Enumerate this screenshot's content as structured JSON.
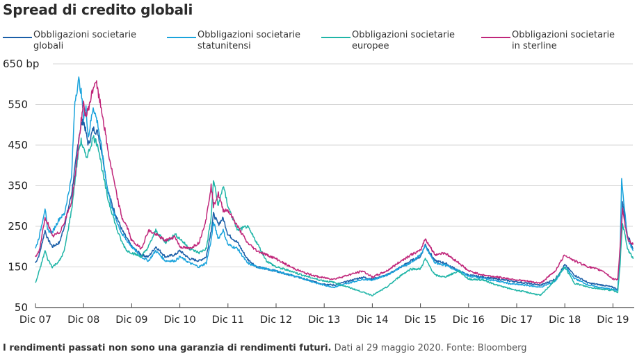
{
  "chart_data": {
    "type": "line",
    "title": "Spread di credito globali",
    "xlabel": "",
    "ylabel": "bp",
    "ylim": [
      50,
      650
    ],
    "yticks": [
      50,
      150,
      250,
      350,
      450,
      550,
      650
    ],
    "ytick_labels": [
      "50",
      "150",
      "250",
      "350",
      "450",
      "550",
      "650 bp"
    ],
    "x_units": "years since Dec 2007",
    "xlim": [
      0,
      12.42
    ],
    "xticks": [
      0,
      1,
      2,
      3,
      4,
      5,
      6,
      7,
      8,
      9,
      10,
      11,
      12
    ],
    "xtick_labels": [
      "Dic 07",
      "Dic 08",
      "Dic 09",
      "Dic 10",
      "Dic 11",
      "Dic 12",
      "Dic 13",
      "Dic 14",
      "Dic 15",
      "Dic 16",
      "Dic 17",
      "Dic 18",
      "Dic 19"
    ],
    "grid": "horizontal",
    "legend_position": "top",
    "series": [
      {
        "name": "Obbligazioni societarie globali",
        "color": "#1b5fa8",
        "x": [
          0,
          0.08,
          0.2,
          0.25,
          0.35,
          0.5,
          0.6,
          0.75,
          0.85,
          0.9,
          0.95,
          1.0,
          1.05,
          1.1,
          1.2,
          1.3,
          1.4,
          1.5,
          1.6,
          1.7,
          1.8,
          1.9,
          2.0,
          2.2,
          2.35,
          2.5,
          2.7,
          2.9,
          3.0,
          3.2,
          3.4,
          3.55,
          3.65,
          3.7,
          3.8,
          3.9,
          4.0,
          4.2,
          4.4,
          4.6,
          4.8,
          5.0,
          5.3,
          5.6,
          5.9,
          6.2,
          6.5,
          6.8,
          7.0,
          7.3,
          7.6,
          7.8,
          8.0,
          8.1,
          8.3,
          8.5,
          8.8,
          9.0,
          9.3,
          9.6,
          9.9,
          10.2,
          10.5,
          10.8,
          11.0,
          11.2,
          11.5,
          11.8,
          12.0,
          12.1,
          12.15,
          12.2,
          12.3,
          12.42
        ],
        "values": [
          160,
          180,
          240,
          220,
          200,
          210,
          250,
          330,
          420,
          470,
          500,
          510,
          480,
          450,
          490,
          480,
          420,
          340,
          300,
          270,
          240,
          220,
          200,
          180,
          175,
          200,
          175,
          180,
          190,
          170,
          165,
          175,
          240,
          280,
          255,
          270,
          230,
          210,
          170,
          150,
          145,
          140,
          130,
          120,
          110,
          105,
          115,
          125,
          120,
          130,
          150,
          165,
          175,
          205,
          165,
          160,
          140,
          130,
          125,
          120,
          115,
          110,
          105,
          120,
          155,
          130,
          110,
          105,
          100,
          95,
          180,
          310,
          230,
          195
        ]
      },
      {
        "name": "Obbligazioni societarie statunitensi",
        "color": "#1aa3dc",
        "x": [
          0,
          0.08,
          0.2,
          0.25,
          0.35,
          0.5,
          0.6,
          0.75,
          0.82,
          0.9,
          0.95,
          1.0,
          1.05,
          1.1,
          1.2,
          1.3,
          1.4,
          1.5,
          1.6,
          1.7,
          1.8,
          1.9,
          2.0,
          2.2,
          2.35,
          2.5,
          2.7,
          2.9,
          3.0,
          3.2,
          3.4,
          3.55,
          3.65,
          3.7,
          3.8,
          3.9,
          4.0,
          4.2,
          4.4,
          4.6,
          4.8,
          5.0,
          5.3,
          5.6,
          5.9,
          6.2,
          6.5,
          6.8,
          7.0,
          7.3,
          7.6,
          7.8,
          8.0,
          8.1,
          8.3,
          8.5,
          8.8,
          9.0,
          9.3,
          9.6,
          9.9,
          10.2,
          10.5,
          10.8,
          11.0,
          11.2,
          11.5,
          11.8,
          12.0,
          12.1,
          12.15,
          12.18,
          12.3,
          12.42
        ],
        "values": [
          195,
          225,
          295,
          240,
          235,
          270,
          280,
          370,
          560,
          610,
          580,
          520,
          540,
          470,
          545,
          500,
          420,
          340,
          290,
          260,
          230,
          215,
          200,
          175,
          165,
          190,
          165,
          165,
          175,
          160,
          150,
          160,
          215,
          260,
          220,
          240,
          205,
          195,
          160,
          150,
          145,
          140,
          130,
          120,
          108,
          100,
          110,
          120,
          118,
          130,
          150,
          160,
          180,
          200,
          160,
          155,
          140,
          128,
          122,
          115,
          108,
          105,
          100,
          115,
          150,
          122,
          105,
          98,
          95,
          92,
          190,
          370,
          220,
          190
        ]
      },
      {
        "name": "Obbligazioni societarie europee",
        "color": "#1fb5a7",
        "x": [
          0,
          0.08,
          0.2,
          0.25,
          0.35,
          0.5,
          0.6,
          0.75,
          0.85,
          0.9,
          0.95,
          1.0,
          1.05,
          1.1,
          1.2,
          1.3,
          1.4,
          1.5,
          1.6,
          1.7,
          1.8,
          1.9,
          2.0,
          2.2,
          2.35,
          2.5,
          2.7,
          2.9,
          3.0,
          3.2,
          3.4,
          3.55,
          3.65,
          3.7,
          3.8,
          3.9,
          4.0,
          4.2,
          4.4,
          4.6,
          4.8,
          5.0,
          5.3,
          5.6,
          5.9,
          6.2,
          6.5,
          6.8,
          7.0,
          7.3,
          7.6,
          7.8,
          8.0,
          8.1,
          8.3,
          8.5,
          8.8,
          9.0,
          9.3,
          9.6,
          9.9,
          10.2,
          10.5,
          10.8,
          11.0,
          11.2,
          11.5,
          11.8,
          12.0,
          12.1,
          12.15,
          12.2,
          12.3,
          12.42
        ],
        "values": [
          110,
          140,
          190,
          170,
          150,
          165,
          190,
          290,
          390,
          440,
          460,
          440,
          420,
          430,
          470,
          450,
          380,
          320,
          280,
          240,
          210,
          190,
          185,
          175,
          200,
          240,
          210,
          230,
          220,
          195,
          185,
          195,
          270,
          365,
          300,
          350,
          300,
          240,
          250,
          210,
          165,
          150,
          140,
          128,
          118,
          112,
          100,
          88,
          80,
          100,
          130,
          145,
          145,
          170,
          130,
          125,
          140,
          120,
          118,
          105,
          95,
          88,
          80,
          118,
          150,
          110,
          100,
          95,
          92,
          88,
          160,
          260,
          195,
          170
        ]
      },
      {
        "name": "Obbligazioni societarie in sterline",
        "color": "#c0267a",
        "x": [
          0,
          0.08,
          0.2,
          0.25,
          0.35,
          0.5,
          0.6,
          0.75,
          0.85,
          0.9,
          0.95,
          1.0,
          1.05,
          1.1,
          1.2,
          1.25,
          1.3,
          1.4,
          1.5,
          1.6,
          1.7,
          1.8,
          1.9,
          2.0,
          2.2,
          2.35,
          2.5,
          2.7,
          2.9,
          3.0,
          3.2,
          3.4,
          3.55,
          3.65,
          3.7,
          3.8,
          3.9,
          4.0,
          4.2,
          4.4,
          4.6,
          4.8,
          5.0,
          5.3,
          5.6,
          5.9,
          6.2,
          6.5,
          6.8,
          7.0,
          7.3,
          7.6,
          7.8,
          8.0,
          8.1,
          8.3,
          8.5,
          8.8,
          9.0,
          9.3,
          9.6,
          9.9,
          10.2,
          10.5,
          10.8,
          11.0,
          11.2,
          11.5,
          11.8,
          12.0,
          12.1,
          12.15,
          12.2,
          12.3,
          12.42
        ],
        "values": [
          175,
          190,
          270,
          260,
          225,
          235,
          260,
          310,
          400,
          460,
          510,
          550,
          520,
          540,
          590,
          610,
          580,
          520,
          440,
          380,
          320,
          270,
          250,
          215,
          195,
          240,
          230,
          215,
          225,
          200,
          195,
          210,
          270,
          350,
          300,
          330,
          290,
          290,
          250,
          210,
          190,
          180,
          170,
          150,
          135,
          125,
          120,
          130,
          140,
          125,
          140,
          165,
          180,
          190,
          220,
          180,
          185,
          160,
          140,
          130,
          125,
          120,
          115,
          110,
          140,
          180,
          165,
          150,
          140,
          120,
          120,
          200,
          290,
          220,
          205
        ]
      }
    ]
  },
  "legend": [
    {
      "line1": "Obbligazioni societarie",
      "line2": "globali",
      "color": "#1b5fa8"
    },
    {
      "line1": "Obbligazioni societarie",
      "line2": "statunitensi",
      "color": "#1aa3dc"
    },
    {
      "line1": "Obbligazioni societarie",
      "line2": "europee",
      "color": "#1fb5a7"
    },
    {
      "line1": "Obbligazioni societarie",
      "line2": "in sterline",
      "color": "#c0267a"
    }
  ],
  "footer": {
    "bold": "I rendimenti passati non sono una garanzia di rendimenti futuri.",
    "normal": " Dati al 29 maggio 2020. Fonte: Bloomberg"
  }
}
